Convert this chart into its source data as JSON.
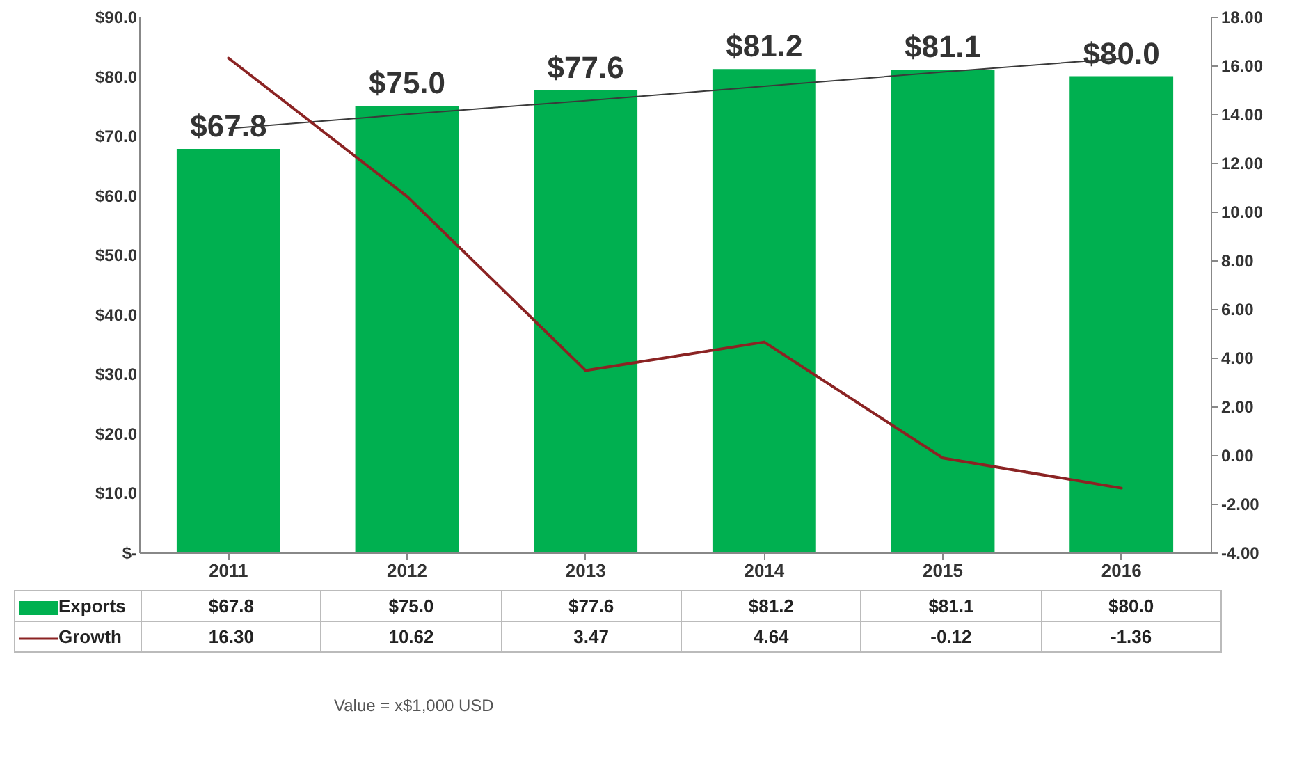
{
  "chart_data": {
    "type": "bar",
    "categories": [
      "2011",
      "2012",
      "2013",
      "2014",
      "2015",
      "2016"
    ],
    "series": [
      {
        "name": "Exports",
        "color": "#00b050",
        "values": [
          67.8,
          75.0,
          77.6,
          81.2,
          81.1,
          80.0
        ],
        "value_labels": [
          "$67.8",
          "$75.0",
          "$77.6",
          "$81.2",
          "$81.1",
          "$80.0"
        ]
      },
      {
        "name": "Growth",
        "type": "line",
        "axis": "y2",
        "color": "#8b2323",
        "values": [
          16.3,
          10.62,
          3.47,
          4.64,
          -0.12,
          -1.36
        ],
        "value_labels": [
          "16.30",
          "10.62",
          "3.47",
          "4.64",
          "-0.12",
          "-1.36"
        ]
      },
      {
        "type": "line",
        "color": "#3a3a3a",
        "values": [
          71.2,
          73.6,
          75.9,
          78.3,
          80.7,
          83.0
        ]
      }
    ],
    "ylim": [
      0,
      90
    ],
    "yticks": [
      {
        "value": 0,
        "label": "$-"
      },
      {
        "value": 10,
        "label": "$10.0"
      },
      {
        "value": 20,
        "label": "$20.0"
      },
      {
        "value": 30,
        "label": "$30.0"
      },
      {
        "value": 40,
        "label": "$40.0"
      },
      {
        "value": 50,
        "label": "$50.0"
      },
      {
        "value": 60,
        "label": "$60.0"
      },
      {
        "value": 70,
        "label": "$70.0"
      },
      {
        "value": 80,
        "label": "$80.0"
      },
      {
        "value": 90,
        "label": "$90.0"
      }
    ],
    "y2lim": [
      -4,
      18
    ],
    "y2ticks": [
      {
        "value": -4,
        "label": "-4.00"
      },
      {
        "value": -2,
        "label": "-2.00"
      },
      {
        "value": 0,
        "label": "0.00"
      },
      {
        "value": 2,
        "label": "2.00"
      },
      {
        "value": 4,
        "label": "4.00"
      },
      {
        "value": 6,
        "label": "6.00"
      },
      {
        "value": 8,
        "label": "8.00"
      },
      {
        "value": 10,
        "label": "10.00"
      },
      {
        "value": 12,
        "label": "12.00"
      },
      {
        "value": 14,
        "label": "14.00"
      },
      {
        "value": 16,
        "label": "16.00"
      },
      {
        "value": 18,
        "label": "18.00"
      }
    ],
    "legend": "bottom",
    "annotations": [
      "Value = x$1,000 USD"
    ]
  }
}
